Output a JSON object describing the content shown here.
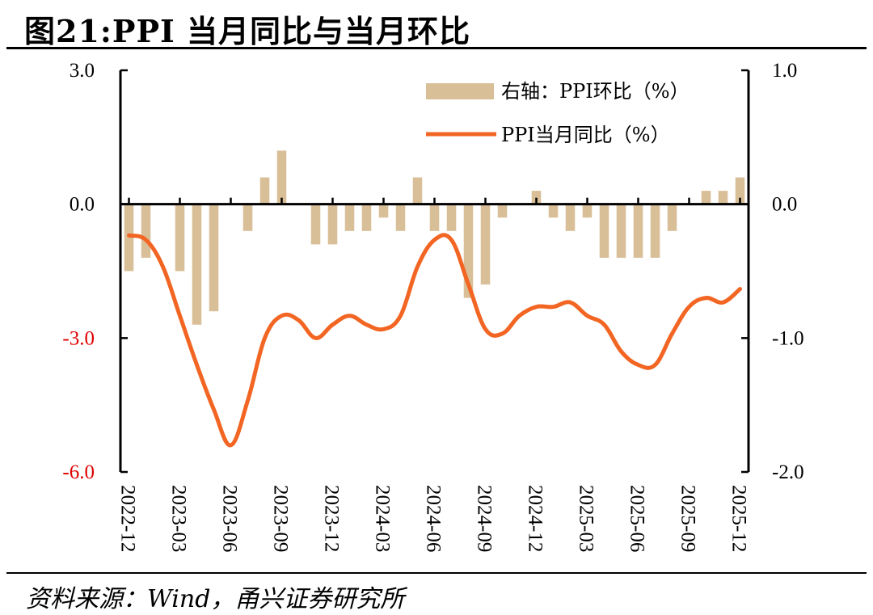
{
  "title": "图21:PPI 当月同比与当月环比",
  "source": "资料来源：Wind，甬兴证券研究所",
  "colors": {
    "bar": "#D9BF98",
    "line": "#F26522",
    "axis": "#000000",
    "neg_label": "#E00000"
  },
  "chart_data": {
    "type": "bar+line",
    "categories": [
      "2022-12",
      "2023-01",
      "2023-02",
      "2023-03",
      "2023-04",
      "2023-05",
      "2023-06",
      "2023-07",
      "2023-08",
      "2023-09",
      "2023-10",
      "2023-11",
      "2023-12",
      "2024-01",
      "2024-02",
      "2024-03",
      "2024-04",
      "2024-05",
      "2024-06",
      "2024-07",
      "2024-08",
      "2024-09",
      "2024-10",
      "2024-11",
      "2024-12",
      "2025-01",
      "2025-02",
      "2025-03",
      "2025-04",
      "2025-05",
      "2025-06",
      "2025-07",
      "2025-08",
      "2025-09",
      "2025-10",
      "2025-11",
      "2025-12"
    ],
    "tick_labels": [
      "2022-12",
      "2023-03",
      "2023-06",
      "2023-09",
      "2023-12",
      "2024-03",
      "2024-06",
      "2024-09",
      "2024-12",
      "2025-03",
      "2025-06",
      "2025-09",
      "2025-12"
    ],
    "series": [
      {
        "name": "右轴：PPI环比（%）",
        "axis": "right",
        "type": "bar",
        "values": [
          -0.5,
          -0.4,
          0.0,
          -0.5,
          -0.9,
          -0.8,
          0.0,
          -0.2,
          0.2,
          0.4,
          0.0,
          -0.3,
          -0.3,
          -0.2,
          -0.2,
          -0.1,
          -0.2,
          0.2,
          -0.2,
          -0.2,
          -0.7,
          -0.6,
          -0.1,
          0.0,
          0.1,
          -0.1,
          -0.2,
          -0.1,
          -0.4,
          -0.4,
          -0.4,
          -0.4,
          -0.2,
          0.0,
          0.1,
          0.1,
          0.2
        ]
      },
      {
        "name": "PPI当月同比（%）",
        "axis": "left",
        "type": "line",
        "values": [
          -0.7,
          -0.8,
          -1.4,
          -2.5,
          -3.6,
          -4.6,
          -5.4,
          -4.4,
          -3.0,
          -2.5,
          -2.6,
          -3.0,
          -2.7,
          -2.5,
          -2.7,
          -2.8,
          -2.5,
          -1.4,
          -0.8,
          -0.8,
          -1.8,
          -2.8,
          -2.9,
          -2.5,
          -2.3,
          -2.3,
          -2.2,
          -2.5,
          -2.7,
          -3.3,
          -3.6,
          -3.6,
          -2.9,
          -2.3,
          -2.1,
          -2.2,
          -1.9
        ]
      }
    ],
    "y_left": {
      "range": [
        -6.0,
        3.0
      ],
      "ticks": [
        3.0,
        0.0,
        -3.0,
        -6.0
      ],
      "tick_labels": [
        "3.0",
        "0.0",
        "-3.0",
        "-6.0"
      ]
    },
    "y_right": {
      "range": [
        -2.0,
        1.0
      ],
      "ticks": [
        1.0,
        0.0,
        -1.0,
        -2.0
      ],
      "tick_labels": [
        "1.0",
        "0.0",
        "-1.0",
        "-2.0"
      ]
    },
    "legend": {
      "position": "top-right",
      "items": [
        "右轴：PPI环比（%）",
        "PPI当月同比（%）"
      ]
    }
  }
}
